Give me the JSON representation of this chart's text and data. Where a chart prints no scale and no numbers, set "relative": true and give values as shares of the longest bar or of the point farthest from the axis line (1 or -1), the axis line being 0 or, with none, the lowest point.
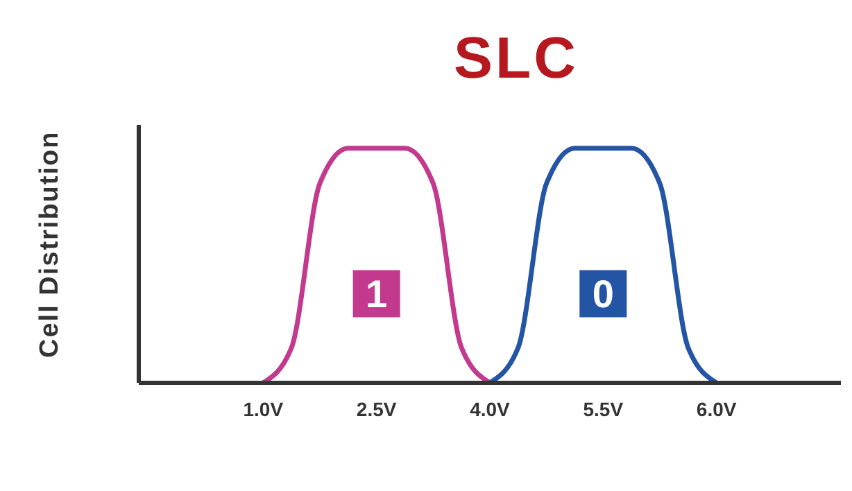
{
  "chart_data": {
    "type": "line",
    "title": "SLC",
    "ylabel": "Cell Distribution",
    "relative": true,
    "legend": false,
    "grid": false,
    "marker": "none",
    "line_style": "solid",
    "categories": [
      null,
      null,
      null,
      null,
      "1.0V",
      null,
      null,
      null,
      "2.5V",
      null,
      null,
      null,
      "4.0V",
      null,
      null,
      null,
      "5.5V",
      null,
      null,
      null,
      "6.0V",
      null,
      null,
      null,
      null
    ],
    "series": [
      {
        "color": "#c2398e",
        "values": [
          null,
          null,
          null,
          null,
          0,
          0.15,
          0.85,
          1,
          1,
          1,
          0.85,
          0.15,
          0,
          null,
          null,
          null,
          null,
          null,
          null,
          null,
          null,
          null,
          null,
          null,
          null
        ]
      },
      {
        "color": "#2455a4",
        "values": [
          null,
          null,
          null,
          null,
          null,
          null,
          null,
          null,
          null,
          null,
          null,
          null,
          0,
          0.15,
          0.85,
          1,
          1,
          1,
          0.85,
          0.15,
          0,
          null,
          null,
          null,
          null
        ]
      }
    ],
    "annotations": [
      {
        "text": "1",
        "x": "2.5V",
        "y": 0.38
      },
      {
        "text": "0",
        "x": "5.5V",
        "y": 0.38
      }
    ]
  }
}
